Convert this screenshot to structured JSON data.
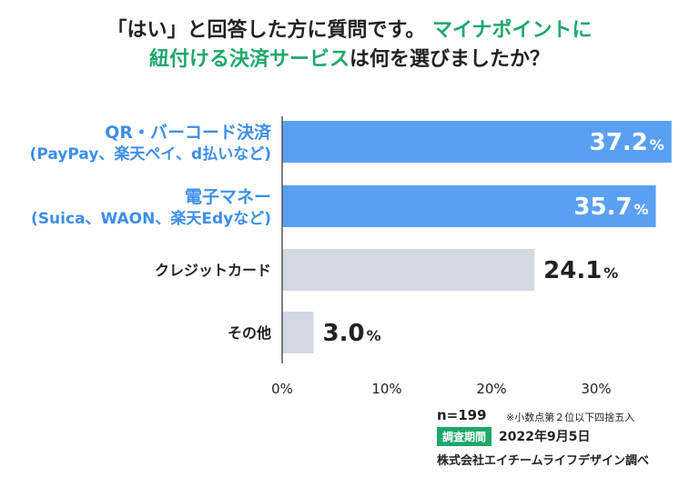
{
  "title": {
    "line1_part1": "「はい」と回答した方に質問です。",
    "line1_part2": "マイナポイントに",
    "line2_accent": "紐付ける決済サービス",
    "line2_rest": "は何を選びましたか？"
  },
  "colors": {
    "accent_green": "#1ea86a",
    "bar_highlight": "#5aa0f2",
    "bar_muted": "#d3d9e3",
    "label_highlight": "#3d8fe8",
    "label_muted": "#222222"
  },
  "chart_data": {
    "type": "bar",
    "orientation": "horizontal",
    "categories": [
      {
        "line1": "QR・バーコード決済",
        "line2": "(PayPay、楽天ペイ、d払いなど)",
        "highlight": true
      },
      {
        "line1": "電子マネー",
        "line2": "(Suica、WAON、楽天Edyなど)",
        "highlight": true
      },
      {
        "line1": "クレジットカード",
        "line2": "",
        "highlight": false
      },
      {
        "line1": "その他",
        "line2": "",
        "highlight": false
      }
    ],
    "values": [
      37.2,
      35.7,
      24.1,
      3.0
    ],
    "value_labels": [
      "37.2",
      "35.7",
      "24.1",
      "3.0"
    ],
    "unit": "%",
    "xlim": [
      0,
      30
    ],
    "xticks": [
      "0%",
      "10%",
      "20%",
      "30%"
    ],
    "xtick_values": [
      0,
      10,
      20,
      30
    ],
    "grid": false
  },
  "footer": {
    "n": "n=199",
    "note": "※小数点第２位以下四捨五入",
    "period_label": "調査期間",
    "period_date": "2022年9月5日",
    "source": "株式会社エイチームライフデザイン調べ"
  }
}
